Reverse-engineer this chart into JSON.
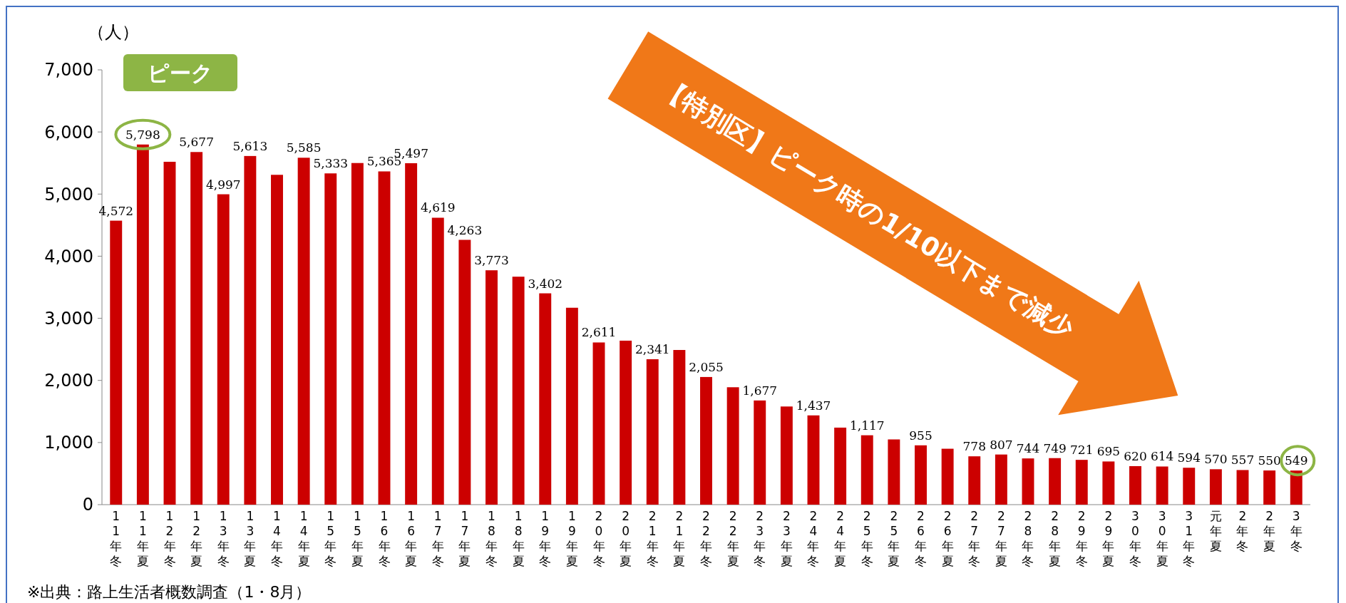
{
  "chart_data": {
    "type": "bar",
    "ylabel": "（人）",
    "categories": [
      "11年冬",
      "11年夏",
      "12年冬",
      "12年夏",
      "13年冬",
      "13年夏",
      "14年冬",
      "14年夏",
      "15年冬",
      "15年夏",
      "16年冬",
      "16年夏",
      "17年冬",
      "17年夏",
      "18年冬",
      "18年夏",
      "19年冬",
      "19年夏",
      "20年冬",
      "20年夏",
      "21年冬",
      "21年夏",
      "22年冬",
      "22年夏",
      "23年冬",
      "23年夏",
      "24年冬",
      "24年夏",
      "25年冬",
      "25年夏",
      "26年冬",
      "26年夏",
      "27年冬",
      "27年夏",
      "28年冬",
      "28年夏",
      "29年冬",
      "29年夏",
      "30年冬",
      "30年夏",
      "31年冬",
      "元年夏",
      "2年冬",
      "2年夏",
      "3年冬"
    ],
    "values": [
      4572,
      5798,
      5520,
      5677,
      4997,
      5613,
      5310,
      5585,
      5333,
      5500,
      5365,
      5497,
      4619,
      4263,
      3773,
      3670,
      3402,
      3170,
      2611,
      2640,
      2341,
      2490,
      2055,
      1890,
      1677,
      1580,
      1437,
      1240,
      1117,
      1050,
      955,
      900,
      778,
      807,
      744,
      749,
      721,
      695,
      620,
      614,
      594,
      570,
      557,
      550,
      549
    ],
    "value_labels": [
      "4,572",
      "5,798",
      null,
      "5,677",
      "4,997",
      "5,613",
      null,
      "5,585",
      "5,333",
      null,
      "5,365",
      "5,497",
      "4,619",
      "4,263",
      "3,773",
      null,
      "3,402",
      null,
      "2,611",
      null,
      "2,341",
      null,
      "2,055",
      null,
      "1,677",
      null,
      "1,437",
      null,
      "1,117",
      null,
      "955",
      null,
      "778",
      "807",
      "744",
      "749",
      "721",
      "695",
      "620",
      "614",
      "594",
      "570",
      "557",
      "550",
      "549"
    ],
    "color": "#cc0000",
    "ylim": [
      0,
      7000
    ],
    "yticks": [
      0,
      {
        "value": 1000,
        "label": "1,000"
      },
      {
        "value": 2000,
        "label": "2,000"
      },
      {
        "value": 3000,
        "label": "3,000"
      },
      {
        "value": 4000,
        "label": "4,000"
      },
      {
        "value": 5000,
        "label": "5,000"
      },
      {
        "value": 6000,
        "label": "6,000"
      },
      {
        "value": 7000,
        "label": "7,000"
      }
    ],
    "annotations": [
      "ピーク",
      "【特別区】ピーク時の1/10以下まで減少",
      "※出典：路上生活者概数調査（1・8月）"
    ]
  }
}
